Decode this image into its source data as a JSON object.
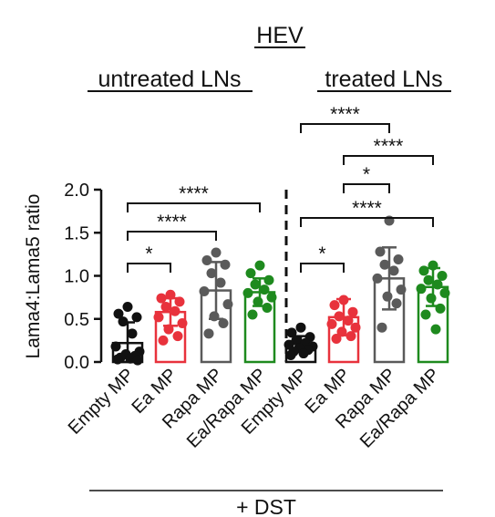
{
  "chart_data": {
    "type": "bar",
    "title": "HEV",
    "ylabel": "Lama4:Lama5 ratio",
    "ylim": [
      0,
      2.0
    ],
    "yticks": [
      "0.0",
      "0.5",
      "1.0",
      "1.5",
      "2.0"
    ],
    "groups": [
      {
        "label": "untreated LNs",
        "categories": [
          0,
          1,
          2,
          3
        ]
      },
      {
        "label": "treated LNs",
        "categories": [
          4,
          5,
          6,
          7
        ]
      }
    ],
    "bottom_label": "+ DST",
    "categories": [
      "Empty MP",
      "Ea MP",
      "Rapa MP",
      "Ea/Rapa MP",
      "Empty MP",
      "Ea MP",
      "Rapa MP",
      "Ea/Rapa MP"
    ],
    "colors": [
      "#111111",
      "#e8323c",
      "#5a5a5a",
      "#1e8a1e",
      "#111111",
      "#e8323c",
      "#5a5a5a",
      "#1e8a1e"
    ],
    "point_colors": [
      "#111111",
      "#e8323c",
      "#5a5a5a",
      "#1e8a1e",
      "#111111",
      "#e8323c",
      "#5a5a5a",
      "#1e8a1e"
    ],
    "means": [
      0.22,
      0.58,
      0.83,
      0.81,
      0.21,
      0.52,
      0.97,
      0.87
    ],
    "sd": [
      0.24,
      0.16,
      0.33,
      0.16,
      0.09,
      0.21,
      0.36,
      0.22
    ],
    "points": [
      [
        0.64,
        0.56,
        0.52,
        0.47,
        0.33,
        0.18,
        0.12,
        0.09,
        0.07,
        0.05,
        0.04,
        0.03,
        0.02
      ],
      [
        0.78,
        0.74,
        0.7,
        0.64,
        0.59,
        0.52,
        0.45,
        0.38,
        0.3,
        0.25
      ],
      [
        1.27,
        1.18,
        1.13,
        1.03,
        0.92,
        0.82,
        0.67,
        0.53,
        0.45,
        0.33
      ],
      [
        1.12,
        1.03,
        0.95,
        0.9,
        0.84,
        0.8,
        0.75,
        0.7,
        0.63,
        0.55
      ],
      [
        0.4,
        0.34,
        0.29,
        0.25,
        0.22,
        0.2,
        0.18,
        0.16,
        0.14,
        0.12,
        0.1,
        0.08
      ],
      [
        0.72,
        0.66,
        0.58,
        0.53,
        0.48,
        0.44,
        0.4,
        0.35,
        0.3,
        0.27
      ],
      [
        1.64,
        1.28,
        1.19,
        1.13,
        1.06,
        0.97,
        0.84,
        0.76,
        0.68,
        0.4
      ],
      [
        1.12,
        1.06,
        1.0,
        0.95,
        0.9,
        0.85,
        0.8,
        0.74,
        0.62,
        0.55,
        0.38
      ]
    ],
    "significance": [
      {
        "from": 0,
        "to": 1,
        "label": "*"
      },
      {
        "from": 0,
        "to": 2,
        "label": "****"
      },
      {
        "from": 0,
        "to": 3,
        "label": "****"
      },
      {
        "from": 4,
        "to": 5,
        "label": "*"
      },
      {
        "from": 4,
        "to": 7,
        "label": "****"
      },
      {
        "from": 5,
        "to": 6,
        "label": "*"
      },
      {
        "from": 5,
        "to": 7,
        "label": "****"
      },
      {
        "from": 4,
        "to": 6,
        "label": "****"
      }
    ],
    "separator": "dashed line between untreated and treated groups"
  }
}
